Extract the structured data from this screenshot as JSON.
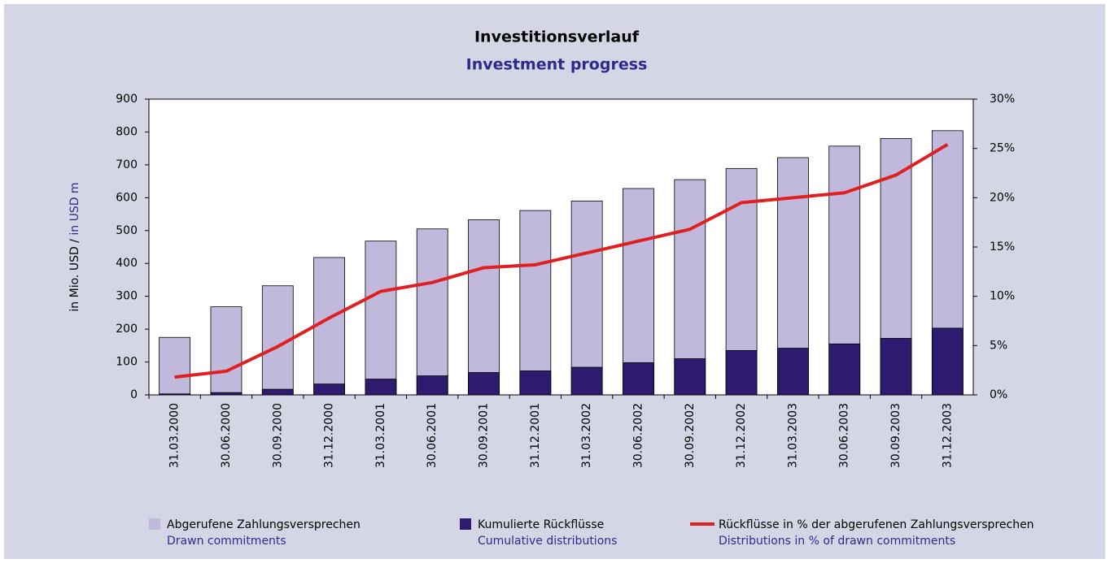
{
  "chart_data": {
    "type": "bar_line",
    "title": "Investitionsverlauf",
    "subtitle": "Investment progress",
    "y_label": "in Mio. USD /",
    "y_label_en": "in USD m",
    "categories": [
      "31.03.2000",
      "30.06.2000",
      "30.09.2000",
      "31.12.2000",
      "31.03.2001",
      "30.06.2001",
      "30.09.2001",
      "31.12.2001",
      "31.03.2002",
      "30.06.2002",
      "30.09.2002",
      "31.12.2002",
      "31.03.2003",
      "30.06.2003",
      "30.09.2003",
      "31.12.2003"
    ],
    "series": [
      {
        "name": "Abgerufene Zahlungsversprechen",
        "name_en": "Drawn commitments",
        "color": "#c0b9dc",
        "kind": "bar",
        "values": [
          175,
          268,
          332,
          418,
          468,
          505,
          533,
          561,
          590,
          628,
          655,
          689,
          722,
          757,
          780,
          804
        ]
      },
      {
        "name": "Kumulierte Rückflüsse",
        "name_en": "Cumulative distributions",
        "color": "#2e1a6e",
        "kind": "bar",
        "values": [
          3,
          7,
          17,
          33,
          48,
          58,
          68,
          73,
          84,
          98,
          110,
          135,
          142,
          155,
          172,
          203
        ]
      },
      {
        "name": "Rückflüsse in % der abgerufenen Zahlungsversprechen",
        "name_en": "Distributions in % of drawn commitments",
        "color": "#e02020",
        "kind": "line",
        "axis": "y2",
        "values": [
          1.8,
          2.4,
          4.9,
          7.8,
          10.5,
          11.4,
          12.9,
          13.2,
          14.4,
          15.6,
          16.8,
          19.5,
          20.0,
          20.5,
          22.3,
          25.4
        ]
      }
    ],
    "ylim": [
      0,
      900
    ],
    "yticks": [
      0,
      100,
      200,
      300,
      400,
      500,
      600,
      700,
      800,
      900
    ],
    "y2lim": [
      0,
      30
    ],
    "y2ticks": [
      {
        "value": 0,
        "label": "0%"
      },
      {
        "value": 5,
        "label": "5%"
      },
      {
        "value": 10,
        "label": "10%"
      },
      {
        "value": 15,
        "label": "15%"
      },
      {
        "value": 20,
        "label": "20%"
      },
      {
        "value": 25,
        "label": "25%"
      },
      {
        "value": 30,
        "label": "30%"
      }
    ],
    "grid": false
  }
}
